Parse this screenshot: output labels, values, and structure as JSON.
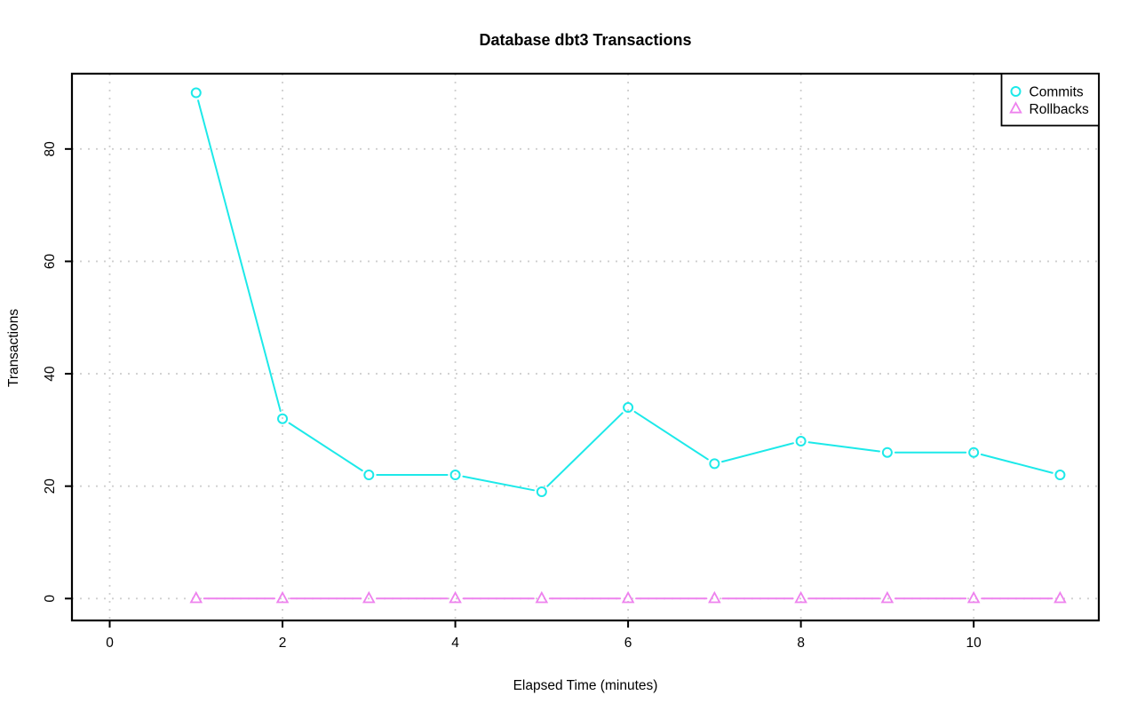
{
  "figure": {
    "background": "#ffffff",
    "axis_color": "#000000",
    "grid_color": "#cfcfcf",
    "legend_border_color": "#000000",
    "legend_fill": "#ffffff"
  },
  "chart_data": {
    "type": "line",
    "title": "Database dbt3 Transactions",
    "xlabel": "Elapsed Time (minutes)",
    "ylabel": "Transactions",
    "x": [
      1,
      2,
      3,
      4,
      5,
      6,
      7,
      8,
      9,
      10,
      11
    ],
    "series": [
      {
        "name": "Commits",
        "marker": "circle",
        "color": "#1de9e9",
        "values": [
          90,
          32,
          22,
          22,
          19,
          34,
          24,
          28,
          26,
          26,
          22
        ]
      },
      {
        "name": "Rollbacks",
        "marker": "triangle",
        "color": "#ee82ee",
        "values": [
          0,
          0,
          0,
          0,
          0,
          0,
          0,
          0,
          0,
          0,
          0
        ]
      }
    ],
    "x_ticks": [
      0,
      2,
      4,
      6,
      8,
      10
    ],
    "y_ticks": [
      0,
      20,
      40,
      60,
      80
    ],
    "xlim": [
      -0.437,
      11.448
    ],
    "ylim": [
      -3.9,
      93.4
    ],
    "grid": true,
    "grid_style": "dotted",
    "legend_position": "top-right",
    "line_style": "points-with-segments"
  }
}
